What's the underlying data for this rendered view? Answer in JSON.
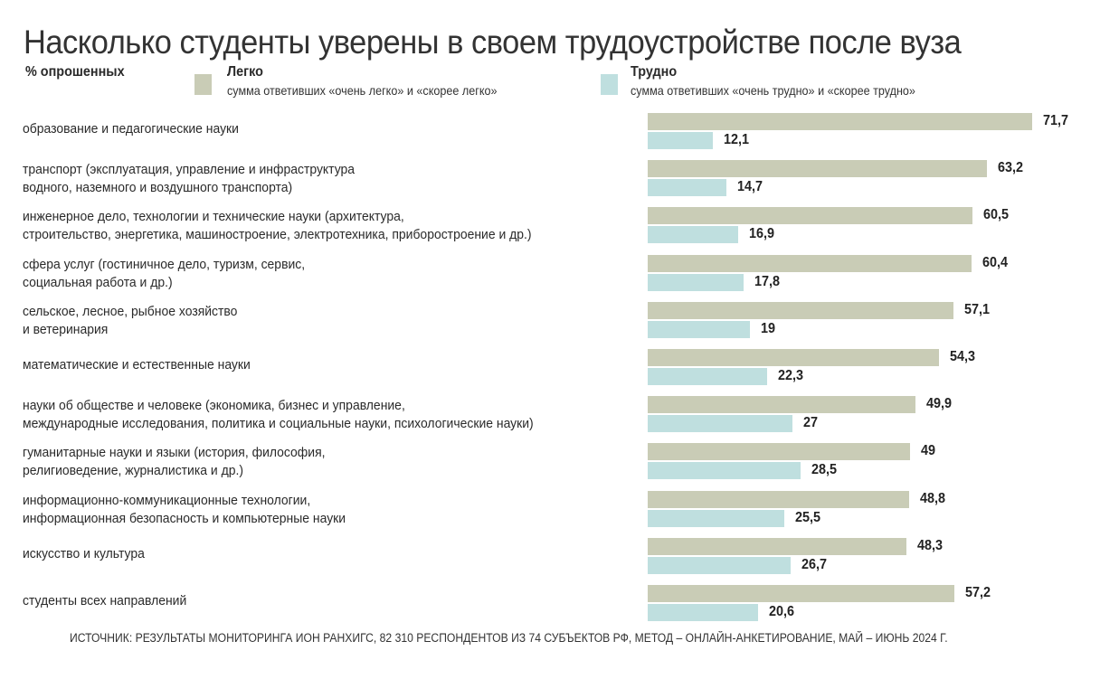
{
  "chart_data": {
    "type": "bar",
    "orientation": "horizontal",
    "title": "Насколько студенты уверены в своем трудоустройстве после вуза",
    "unit_label": "% опрошенных",
    "categories": [
      "образование и педагогические науки",
      "транспорт (эксплуатация, управление и инфраструктура\nводного, наземного и воздушного транспорта)",
      "инженерное дело, технологии и технические науки (архитектура,\nстроительство, энергетика, машиностроение, электротехника, приборостроение и др.)",
      "сфера услуг (гостиничное дело, туризм, сервис,\nсоциальная работа и др.)",
      "сельское, лесное, рыбное хозяйство\nи ветеринария",
      "математические и естественные науки",
      "науки об обществе и человеке (экономика, бизнес и управление,\nмеждународные исследования, политика и социальные науки, психологические науки)",
      "гуманитарные науки и языки (история, философия,\nрелигиоведение, журналистика и др.)",
      "информационно-коммуникационные технологии,\nинформационная безопасность и компьютерные науки",
      "искусство и культура",
      "студенты всех направлений"
    ],
    "series": [
      {
        "name": "Легко",
        "description": "сумма ответивших  «очень легко» и «скорее легко»",
        "color": "#c9ccb6",
        "values": [
          71.7,
          63.2,
          60.5,
          60.4,
          57.1,
          54.3,
          49.9,
          49,
          48.8,
          48.3,
          57.2
        ],
        "labels": [
          "71,7",
          "63,2",
          "60,5",
          "60,4",
          "57,1",
          "54,3",
          "49,9",
          "49",
          "48,8",
          "48,3",
          "57,2"
        ]
      },
      {
        "name": "Трудно",
        "description": "сумма ответивших «очень трудно» и «скорее трудно»",
        "color": "#bfdfdf",
        "values": [
          12.1,
          14.7,
          16.9,
          17.8,
          19,
          22.3,
          27,
          28.5,
          25.5,
          26.7,
          20.6
        ],
        "labels": [
          "12,1",
          "14,7",
          "16,9",
          "17,8",
          "19",
          "22,3",
          "27",
          "28,5",
          "25,5",
          "26,7",
          "20,6"
        ]
      }
    ],
    "legend": "top",
    "grid": false,
    "source": "ИСТОЧНИК: РЕЗУЛЬТАТЫ МОНИТОРИНГА ИОН РАНХИГС, 82 310 РЕСПОНДЕНТОВ ИЗ 74 СУБЪЕКТОВ РФ, МЕТОД – ОНЛАЙН-АНКЕТИРОВАНИЕ, МАЙ – ИЮНЬ 2024 Г."
  }
}
